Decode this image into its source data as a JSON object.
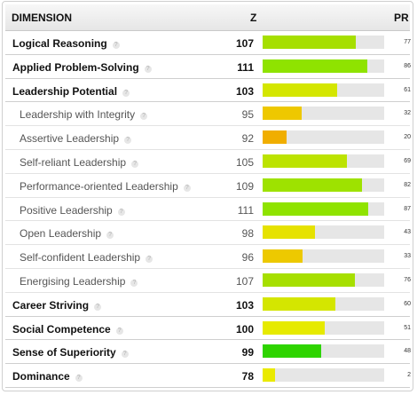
{
  "header": {
    "dimension": "DIMENSION",
    "z": "Z",
    "pr": "PR"
  },
  "help_glyph": "?",
  "rows": [
    {
      "label": "Logical Reasoning",
      "z": "107",
      "pr": "77",
      "level": "main",
      "percent": 77,
      "color": "#a6df00"
    },
    {
      "label": "Applied Problem-Solving",
      "z": "111",
      "pr": "86",
      "level": "main",
      "percent": 86,
      "color": "#8fe300"
    },
    {
      "label": "Leadership Potential",
      "z": "103",
      "pr": "61",
      "level": "main",
      "percent": 61,
      "color": "#d4e600"
    },
    {
      "label": "Leadership with Integrity",
      "z": "95",
      "pr": "32",
      "level": "sub",
      "percent": 32,
      "color": "#eec800"
    },
    {
      "label": "Assertive Leadership",
      "z": "92",
      "pr": "20",
      "level": "sub",
      "percent": 20,
      "color": "#f0ae00"
    },
    {
      "label": "Self-reliant Leadership",
      "z": "105",
      "pr": "69",
      "level": "sub",
      "percent": 69,
      "color": "#bce300"
    },
    {
      "label": "Performance-oriented Leadership",
      "z": "109",
      "pr": "82",
      "level": "sub",
      "percent": 82,
      "color": "#9ee200"
    },
    {
      "label": "Positive Leadership",
      "z": "111",
      "pr": "87",
      "level": "sub",
      "percent": 87,
      "color": "#8fe300"
    },
    {
      "label": "Open Leadership",
      "z": "98",
      "pr": "43",
      "level": "sub",
      "percent": 43,
      "color": "#e6e200"
    },
    {
      "label": "Self-confident Leadership",
      "z": "96",
      "pr": "33",
      "level": "sub",
      "percent": 33,
      "color": "#edc900"
    },
    {
      "label": "Energising Leadership",
      "z": "107",
      "pr": "76",
      "level": "sub",
      "percent": 76,
      "color": "#a6df00"
    },
    {
      "label": "Career Striving",
      "z": "103",
      "pr": "60",
      "level": "main",
      "percent": 60,
      "color": "#d4e600"
    },
    {
      "label": "Social Competence",
      "z": "100",
      "pr": "51",
      "level": "main",
      "percent": 51,
      "color": "#e6ea00"
    },
    {
      "label": "Sense of Superiority",
      "z": "99",
      "pr": "48",
      "level": "main",
      "percent": 48,
      "color": "#2ed400"
    },
    {
      "label": "Dominance",
      "z": "78",
      "pr": "2",
      "level": "main",
      "percent": 10,
      "color": "#eaea00"
    }
  ]
}
